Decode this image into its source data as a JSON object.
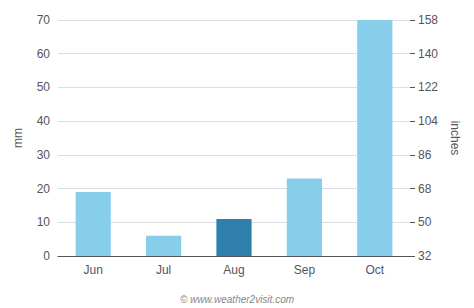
{
  "chart_data": {
    "type": "bar",
    "categories": [
      "Jun",
      "Jul",
      "Aug",
      "Sep",
      "Oct"
    ],
    "values": [
      19,
      6,
      11,
      23,
      70
    ],
    "colors": [
      "#87CEEB",
      "#87CEEB",
      "#2E7FAB",
      "#87CEEB",
      "#87CEEB"
    ],
    "ylabel": "mm",
    "y2label": "inches",
    "ylim": [
      0,
      70
    ],
    "yticks": [
      0,
      10,
      20,
      30,
      40,
      50,
      60,
      70
    ],
    "y2lim": [
      32,
      158
    ],
    "y2ticks": [
      32,
      50,
      68,
      86,
      104,
      122,
      140,
      158
    ],
    "grid": true,
    "annotations": [
      "© www.weather2visit.com"
    ]
  }
}
